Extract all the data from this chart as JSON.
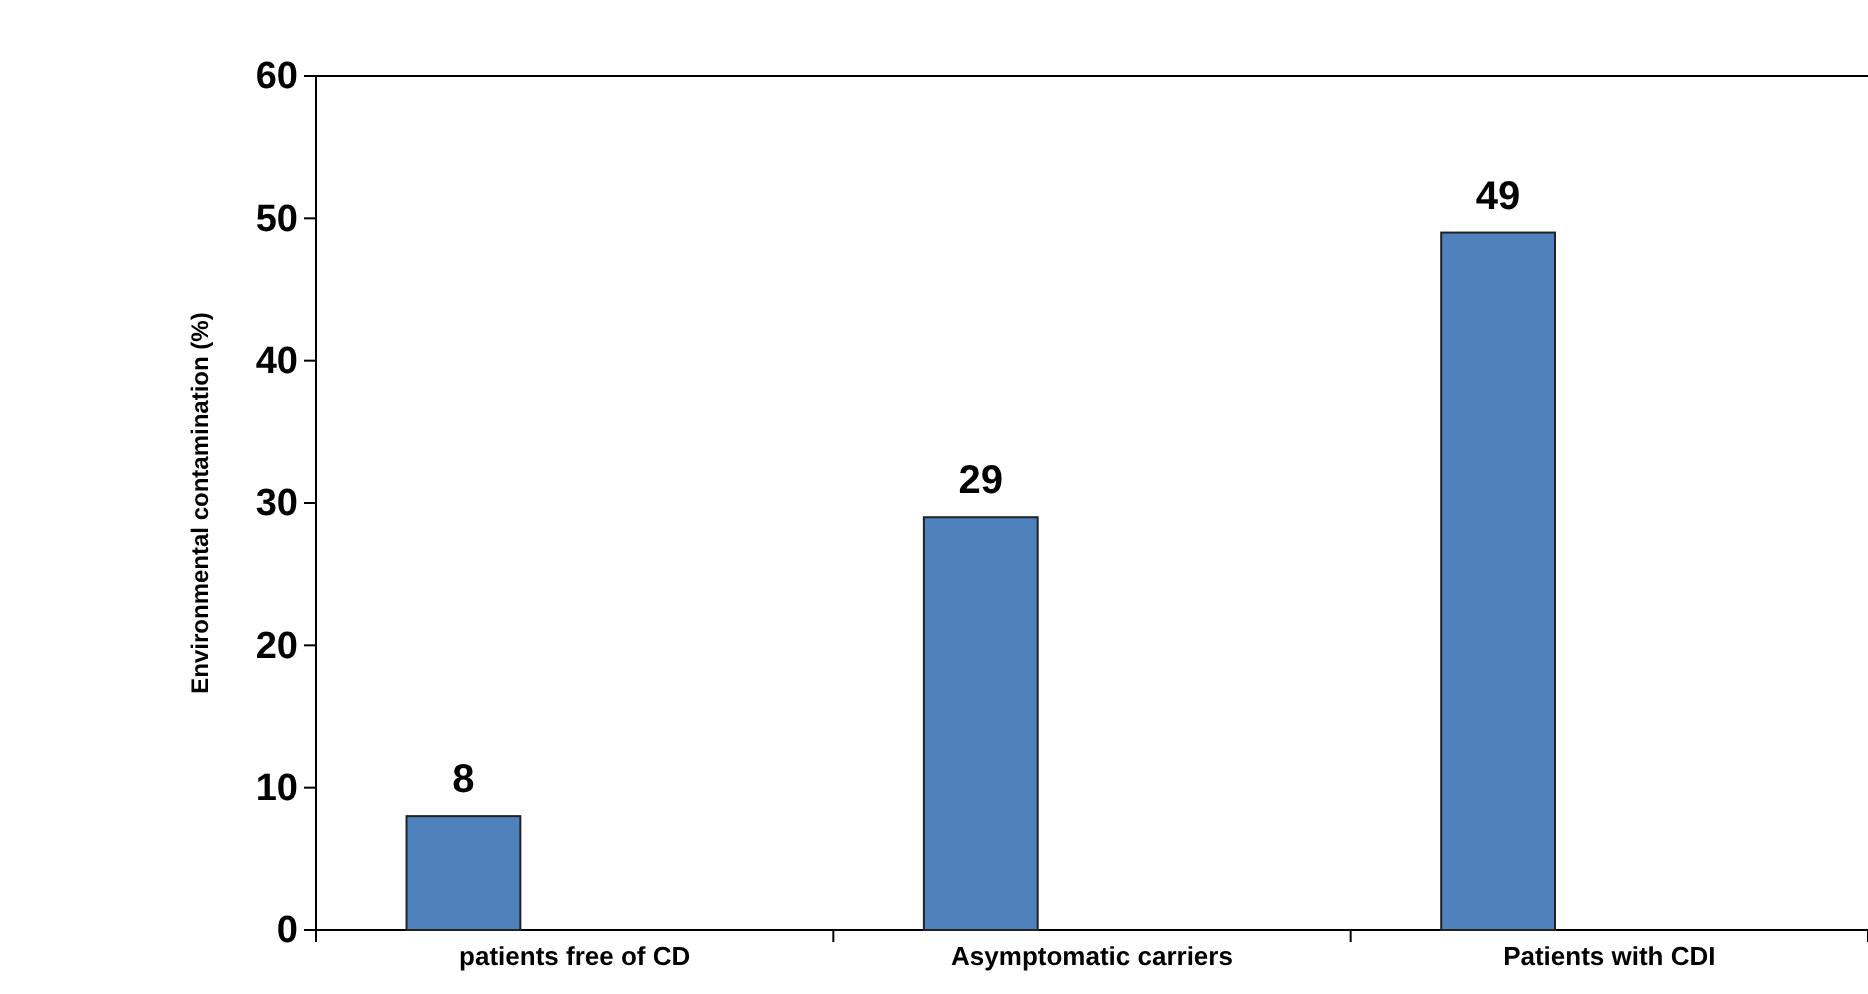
{
  "chart_data": {
    "type": "bar",
    "ylabel": "Environmental contamination (%)",
    "categories": [
      "patients free of CD",
      "Asymptomatic carriers",
      "Patients with CDI"
    ],
    "values": [
      8,
      29,
      49
    ],
    "color": "#4f81bd",
    "ylim": [
      0,
      60
    ],
    "yticks": [
      0,
      10,
      20,
      30,
      40,
      50,
      60
    ],
    "data_labels": true,
    "grid": false
  }
}
